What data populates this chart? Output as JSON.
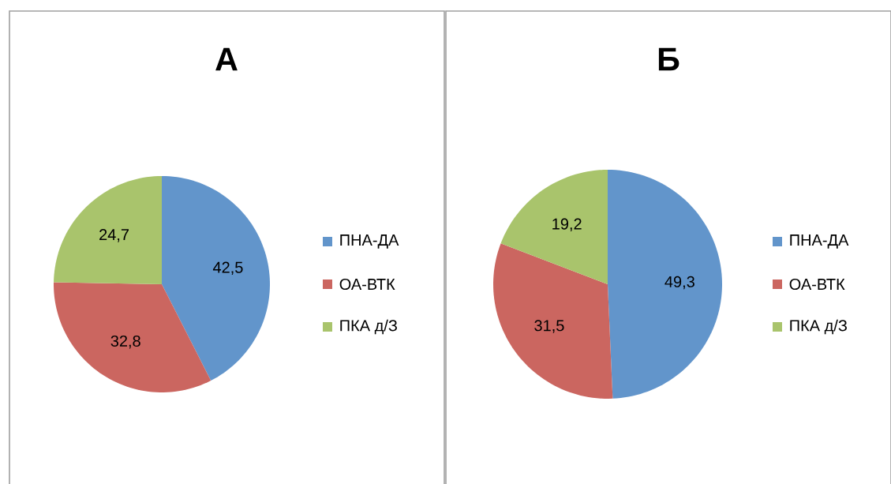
{
  "chart_data": [
    {
      "type": "pie",
      "title": "А",
      "categories": [
        "ПНА-ДА",
        "ОА-ВТК",
        "ПКА д/З"
      ],
      "values": [
        42.5,
        32.8,
        24.7
      ],
      "colors": [
        "#6295cb",
        "#cb6660",
        "#a9c46c"
      ],
      "value_labels": [
        "42,5",
        "32,8",
        "24,7"
      ],
      "legend": "right"
    },
    {
      "type": "pie",
      "title": "Б",
      "categories": [
        "ПНА-ДА",
        "ОА-ВТК",
        "ПКА д/З"
      ],
      "values": [
        49.3,
        31.5,
        19.2
      ],
      "colors": [
        "#6295cb",
        "#cb6660",
        "#a9c46c"
      ],
      "value_labels": [
        "49,3",
        "31,5",
        "19,2"
      ],
      "legend": "right"
    }
  ]
}
